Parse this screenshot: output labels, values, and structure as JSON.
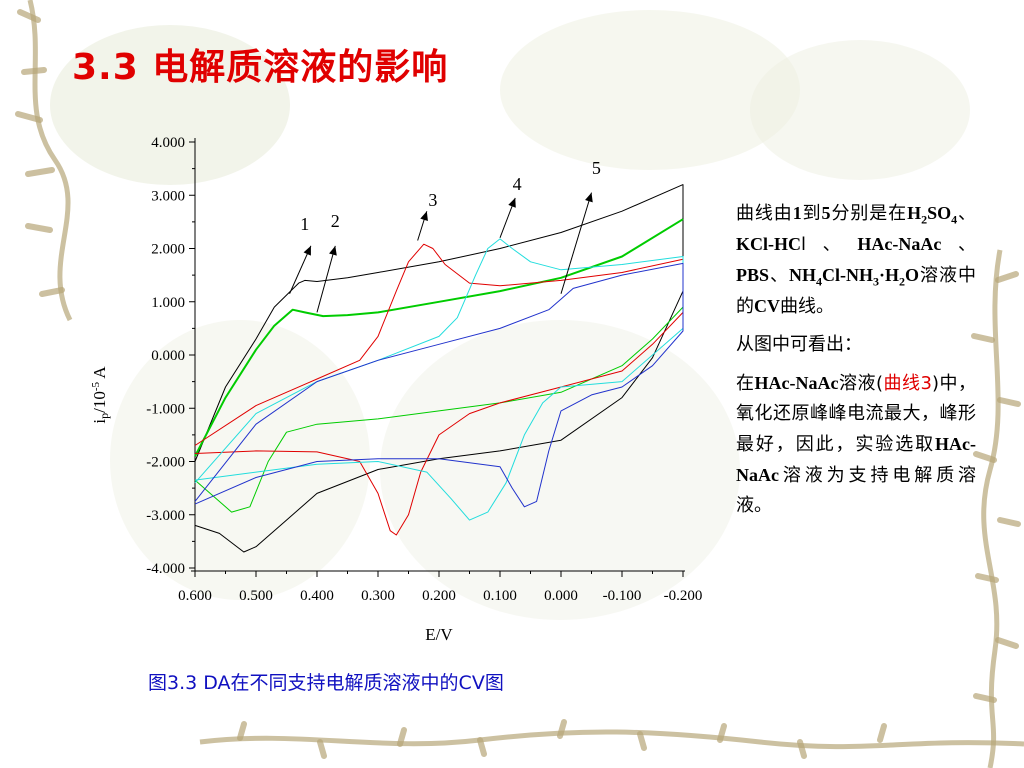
{
  "slide": {
    "title": "3.3 电解质溶液的影响",
    "caption": "图3.3 DA在不同支持电解质溶液中的CV图"
  },
  "side_text": {
    "p1_a": "曲线由",
    "p1_b": "1",
    "p1_c": "到",
    "p1_d": "5",
    "p1_e": "分别是在",
    "p1_h2so4_h": "H",
    "p1_h2so4_2": "2",
    "p1_h2so4_so": "SO",
    "p1_h2so4_4": "4",
    "p1_sep1": "、",
    "p1_kcl": "KCl-HC",
    "p1_kcl_l": "l",
    "p1_sep2": "、",
    "p1_hac": "HAc-NaAc",
    "p1_sep3": "、",
    "p1_pbs": "PBS",
    "p1_sep4": "、",
    "p1_nh_a": "NH",
    "p1_nh_4": "4",
    "p1_nh_b": "Cl-NH",
    "p1_nh_3": "3",
    "p1_nh_c": "·H",
    "p1_nh_2": "2",
    "p1_nh_d": "O",
    "p1_f": "溶液中的",
    "p1_cv": "CV",
    "p1_g": "曲线。",
    "p2": "从图中可看出：",
    "p3_a": "在",
    "p3_hac": "HAc-NaAc",
    "p3_b": "溶液(",
    "p3_red": "曲线3",
    "p3_c": ")中，氧化还原峰峰电流最大，峰形最好，因此，实验选取",
    "p3_hac2": "HAc-NaAc",
    "p3_d": "溶液为支持电解质溶液。"
  },
  "chart_data": {
    "type": "line",
    "xlabel": "E/V",
    "ylabel_main": "i",
    "ylabel_sub": "p",
    "ylabel_rest": "/10",
    "ylabel_exp": "-5",
    "ylabel_unit": " A",
    "xlim": [
      0.6,
      -0.2
    ],
    "ylim": [
      -4.0,
      4.0
    ],
    "x_ticks": [
      "0.600",
      "0.500",
      "0.400",
      "0.300",
      "0.200",
      "0.100",
      "0.000",
      "-0.100",
      "-0.200"
    ],
    "y_ticks": [
      "4.000",
      "3.000",
      "2.000",
      "1.000",
      "0.000",
      "-1.000",
      "-2.000",
      "-3.000",
      "-4.000"
    ],
    "annotations": [
      "1",
      "2",
      "3",
      "4",
      "5"
    ],
    "series": [
      {
        "color": "#000000",
        "width": 1,
        "x": [
          0.6,
          0.55,
          0.5,
          0.47,
          0.43,
          0.42,
          0.4,
          0.35,
          0.3,
          0.2,
          0.1,
          0.0,
          -0.1,
          -0.2,
          -0.2,
          -0.15,
          -0.1,
          0.0,
          0.1,
          0.2,
          0.3,
          0.4,
          0.45,
          0.5,
          0.52,
          0.56,
          0.6
        ],
        "y": [
          -2.0,
          -0.6,
          0.3,
          0.9,
          1.35,
          1.4,
          1.38,
          1.45,
          1.55,
          1.75,
          2.0,
          2.3,
          2.7,
          3.2,
          1.2,
          -0.05,
          -0.8,
          -1.6,
          -1.8,
          -1.95,
          -2.15,
          -2.6,
          -3.1,
          -3.6,
          -3.7,
          -3.35,
          -3.2
        ]
      },
      {
        "color": "#00cc00",
        "width": 2,
        "x": [
          0.6,
          0.55,
          0.5,
          0.47,
          0.44,
          0.42,
          0.39,
          0.35,
          0.3,
          0.2,
          0.1,
          0.0,
          -0.1,
          -0.2
        ],
        "y": [
          -1.9,
          -0.8,
          0.1,
          0.55,
          0.85,
          0.8,
          0.73,
          0.75,
          0.8,
          1.0,
          1.2,
          1.45,
          1.85,
          2.55
        ]
      },
      {
        "color": "#00cc00",
        "width": 1,
        "x": [
          -0.2,
          -0.15,
          -0.1,
          0.0,
          0.1,
          0.2,
          0.3,
          0.4,
          0.45,
          0.48,
          0.51,
          0.54,
          0.6
        ],
        "y": [
          0.9,
          0.3,
          -0.2,
          -0.7,
          -0.9,
          -1.05,
          -1.2,
          -1.3,
          -1.45,
          -2.0,
          -2.85,
          -2.95,
          -2.35
        ]
      },
      {
        "color": "#e00000",
        "width": 1,
        "x": [
          0.6,
          0.5,
          0.4,
          0.33,
          0.3,
          0.27,
          0.25,
          0.225,
          0.21,
          0.19,
          0.15,
          0.1,
          0.0,
          -0.1,
          -0.2,
          -0.2,
          -0.15,
          -0.1,
          0.0,
          0.1,
          0.15,
          0.2,
          0.23,
          0.25,
          0.27,
          0.28,
          0.3,
          0.33,
          0.4,
          0.5,
          0.6
        ],
        "y": [
          -1.7,
          -0.95,
          -0.45,
          -0.1,
          0.35,
          1.2,
          1.75,
          2.08,
          2.0,
          1.7,
          1.35,
          1.3,
          1.4,
          1.55,
          1.8,
          0.8,
          0.2,
          -0.3,
          -0.6,
          -0.9,
          -1.1,
          -1.5,
          -2.2,
          -3.0,
          -3.38,
          -3.3,
          -2.6,
          -2.0,
          -1.82,
          -1.8,
          -1.85
        ]
      },
      {
        "color": "#22dddd",
        "width": 1,
        "x": [
          0.6,
          0.5,
          0.4,
          0.3,
          0.2,
          0.17,
          0.14,
          0.12,
          0.1,
          0.08,
          0.05,
          0.0,
          -0.1,
          -0.2,
          -0.2,
          -0.1,
          0.0,
          0.03,
          0.06,
          0.09,
          0.12,
          0.15,
          0.18,
          0.22,
          0.3,
          0.4,
          0.5,
          0.6
        ],
        "y": [
          -2.4,
          -1.1,
          -0.5,
          -0.1,
          0.35,
          0.7,
          1.5,
          2.0,
          2.18,
          2.0,
          1.75,
          1.6,
          1.7,
          1.85,
          0.5,
          -0.5,
          -0.6,
          -0.9,
          -1.5,
          -2.4,
          -2.95,
          -3.1,
          -2.7,
          -2.2,
          -2.0,
          -2.05,
          -2.2,
          -2.35
        ]
      },
      {
        "color": "#2233cc",
        "width": 1,
        "x": [
          0.6,
          0.5,
          0.4,
          0.3,
          0.2,
          0.1,
          0.02,
          0.0,
          -0.02,
          -0.1,
          -0.2,
          -0.2,
          -0.15,
          -0.1,
          -0.05,
          0.0,
          0.02,
          0.04,
          0.06,
          0.08,
          0.1,
          0.2,
          0.3,
          0.4,
          0.5,
          0.6
        ],
        "y": [
          -2.75,
          -1.3,
          -0.5,
          -0.1,
          0.2,
          0.5,
          0.85,
          1.05,
          1.25,
          1.5,
          1.72,
          0.45,
          -0.2,
          -0.6,
          -0.75,
          -1.05,
          -1.8,
          -2.75,
          -2.85,
          -2.5,
          -2.1,
          -1.95,
          -1.95,
          -2.0,
          -2.3,
          -2.8
        ]
      }
    ]
  }
}
